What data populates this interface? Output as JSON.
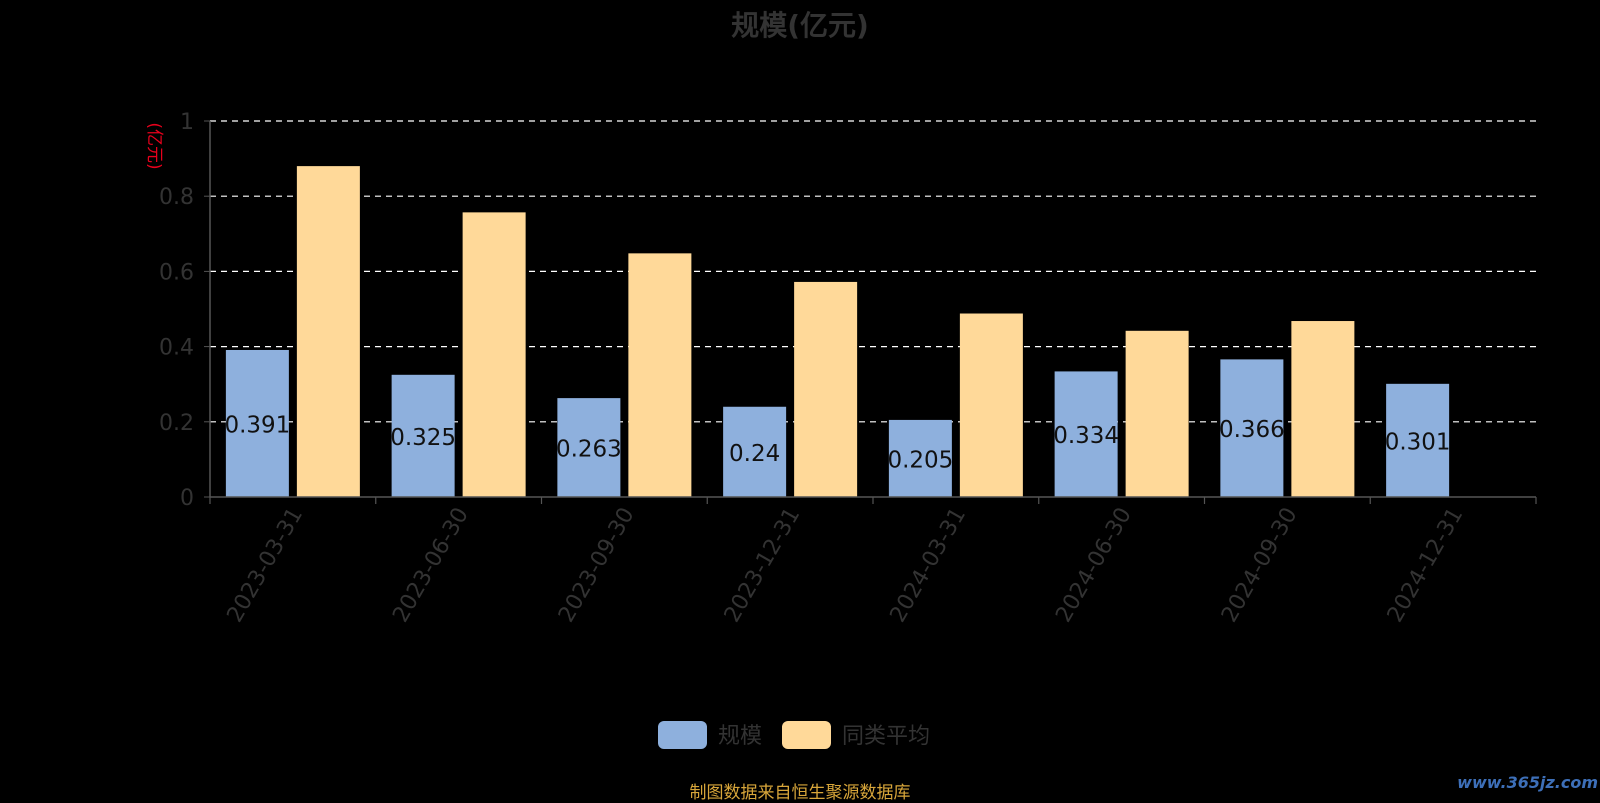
{
  "chart_data": {
    "type": "bar",
    "title": "规模(亿元)",
    "ylabel": "(亿元)",
    "ylim": [
      0,
      1
    ],
    "yticks": [
      "0",
      "0.2",
      "0.4",
      "0.6",
      "0.8",
      "1"
    ],
    "categories": [
      "2023-03-31",
      "2023-06-30",
      "2023-09-30",
      "2023-12-31",
      "2024-03-31",
      "2024-06-30",
      "2024-09-30",
      "2024-12-31"
    ],
    "series": [
      {
        "name": "规模",
        "color": "#8eb0dd",
        "values": [
          0.391,
          0.325,
          0.263,
          0.24,
          0.205,
          0.334,
          0.366,
          0.301
        ],
        "labels": [
          "0.391",
          "0.325",
          "0.263",
          "0.24",
          "0.205",
          "0.334",
          "0.366",
          "0.301"
        ]
      },
      {
        "name": "同类平均",
        "color": "#ffd999",
        "values": [
          0.88,
          0.757,
          0.648,
          0.572,
          0.488,
          0.442,
          0.468,
          null
        ]
      }
    ],
    "grid": true,
    "legend": "bottom-center"
  },
  "footer": {
    "source": "制图数据来自恒生聚源数据库",
    "watermark": "www.365jz.com"
  }
}
